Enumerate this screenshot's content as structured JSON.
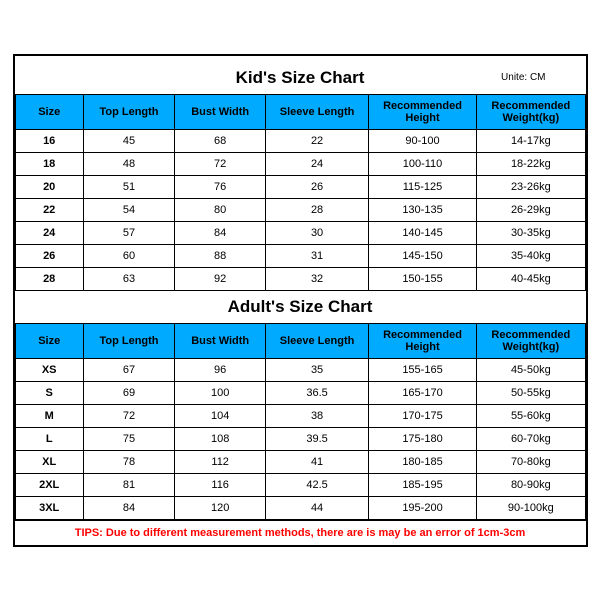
{
  "unit_label": "Unite: CM",
  "kids": {
    "title": "Kid's Size Chart",
    "columns": [
      "Size",
      "Top Length",
      "Bust Width",
      "Sleeve Length",
      "Recommended Height",
      "Recommended Weight(kg)"
    ],
    "rows": [
      [
        "16",
        "45",
        "68",
        "22",
        "90-100",
        "14-17kg"
      ],
      [
        "18",
        "48",
        "72",
        "24",
        "100-110",
        "18-22kg"
      ],
      [
        "20",
        "51",
        "76",
        "26",
        "115-125",
        "23-26kg"
      ],
      [
        "22",
        "54",
        "80",
        "28",
        "130-135",
        "26-29kg"
      ],
      [
        "24",
        "57",
        "84",
        "30",
        "140-145",
        "30-35kg"
      ],
      [
        "26",
        "60",
        "88",
        "31",
        "145-150",
        "35-40kg"
      ],
      [
        "28",
        "63",
        "92",
        "32",
        "150-155",
        "40-45kg"
      ]
    ]
  },
  "adults": {
    "title": "Adult's Size Chart",
    "columns": [
      "Size",
      "Top Length",
      "Bust Width",
      "Sleeve Length",
      "Recommended Height",
      "Recommended Weight(kg)"
    ],
    "rows": [
      [
        "XS",
        "67",
        "96",
        "35",
        "155-165",
        "45-50kg"
      ],
      [
        "S",
        "69",
        "100",
        "36.5",
        "165-170",
        "50-55kg"
      ],
      [
        "M",
        "72",
        "104",
        "38",
        "170-175",
        "55-60kg"
      ],
      [
        "L",
        "75",
        "108",
        "39.5",
        "175-180",
        "60-70kg"
      ],
      [
        "XL",
        "78",
        "112",
        "41",
        "180-185",
        "70-80kg"
      ],
      [
        "2XL",
        "81",
        "116",
        "42.5",
        "185-195",
        "80-90kg"
      ],
      [
        "3XL",
        "84",
        "120",
        "44",
        "195-200",
        "90-100kg"
      ]
    ]
  },
  "tips": "TIPS: Due to different measurement methods, there are is may be an error of 1cm-3cm",
  "style": {
    "header_bg": "#00aaff",
    "border_color": "#000000",
    "tips_color": "#ff0000",
    "font_family": "Arial, sans-serif",
    "title_fontsize": 17,
    "cell_fontsize": 11,
    "unit_fontsize": 10,
    "col_widths_pct": [
      12,
      16,
      16,
      18,
      19,
      19
    ]
  }
}
